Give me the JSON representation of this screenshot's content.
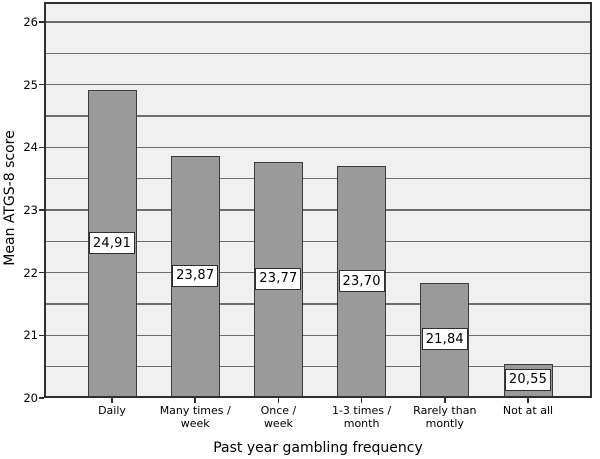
{
  "chart_data": {
    "type": "bar",
    "title": "",
    "categories": [
      "Daily",
      "Many times /\nweek",
      "Once /\nweek",
      "1-3 times /\nmonth",
      "Rarely than\nmontly",
      "Not at all"
    ],
    "values": [
      24.91,
      23.87,
      23.77,
      23.7,
      21.84,
      20.55
    ],
    "value_labels": [
      "24,91",
      "23,87",
      "23,77",
      "23,70",
      "21,84",
      "20,55"
    ],
    "xlabel": "Past year gambling frequency",
    "ylabel": "Mean ATGS-8 score",
    "ylim": [
      20,
      26.32
    ],
    "yticks": [
      20,
      21,
      22,
      23,
      24,
      25,
      26
    ],
    "gridline_step": 0.5,
    "grid": true,
    "legend_position": "none",
    "colors": {
      "bar_fill": "#9a9a9a",
      "bar_border": "#3c3c3c",
      "plot_bg": "#f0f0f0",
      "gridline": "#6d6d6d",
      "frame": "#2f2f2f",
      "label_box_bg": "#ffffff",
      "label_box_border": "#2f2f2f",
      "text": "#000000",
      "page_bg": "#ffffff"
    }
  }
}
